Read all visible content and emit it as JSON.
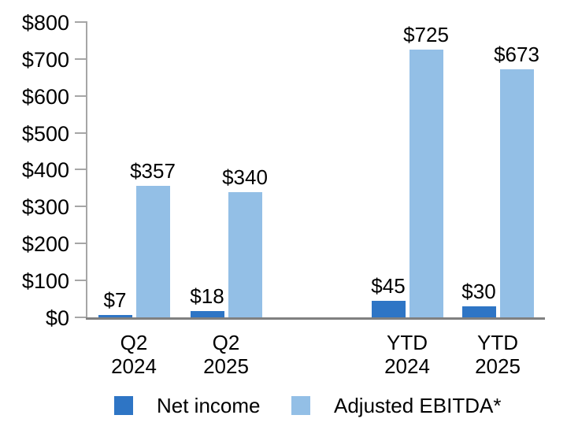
{
  "chart_data": {
    "type": "bar",
    "title": "",
    "xlabel": "",
    "ylabel": "",
    "grid": false,
    "legend_position": "bottom",
    "ylim": [
      0,
      800
    ],
    "yticks": [
      0,
      100,
      200,
      300,
      400,
      500,
      600,
      700,
      800
    ],
    "ytick_labels": [
      "$0",
      "$100",
      "$200",
      "$300",
      "$400",
      "$500",
      "$600",
      "$700",
      "$800"
    ],
    "categories": [
      {
        "line1": "Q2",
        "line2": "2024"
      },
      {
        "line1": "Q2",
        "line2": "2025"
      },
      {
        "line1": "YTD",
        "line2": "2024"
      },
      {
        "line1": "YTD",
        "line2": "2025"
      }
    ],
    "series": [
      {
        "name": "Net income",
        "color": "#2E75C5",
        "values": [
          7,
          18,
          45,
          30
        ],
        "labels": [
          "$7",
          "$18",
          "$45",
          "$30"
        ]
      },
      {
        "name": "Adjusted EBITDA*",
        "color": "#93BFE6",
        "values": [
          357,
          340,
          725,
          673
        ],
        "labels": [
          "$357",
          "$340",
          "$725",
          "$673"
        ]
      }
    ],
    "colors": {
      "axis": "#A6A6A6",
      "baseline": "#808080",
      "text": "#000000",
      "background": "#FFFFFF"
    }
  }
}
